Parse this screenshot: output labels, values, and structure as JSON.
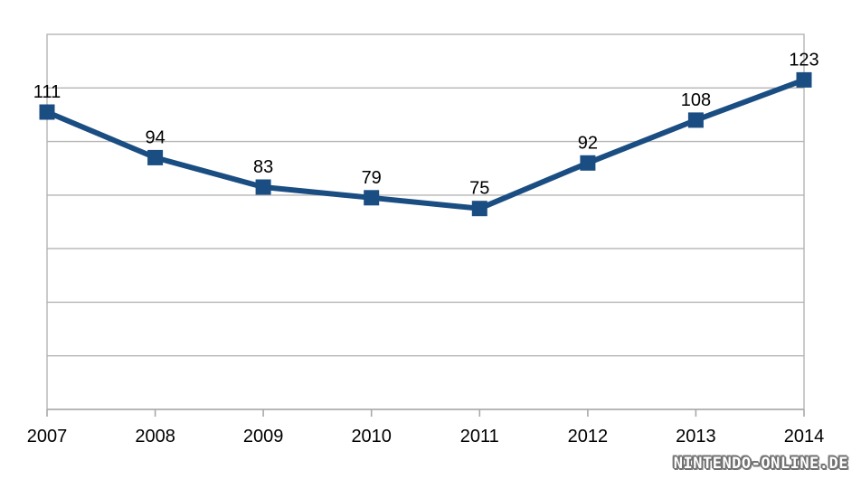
{
  "chart_data": {
    "type": "line",
    "title": "",
    "xlabel": "",
    "ylabel": "",
    "categories": [
      "2007",
      "2008",
      "2009",
      "2010",
      "2011",
      "2012",
      "2013",
      "2014"
    ],
    "series": [
      {
        "name": "values",
        "values": [
          111,
          94,
          83,
          79,
          75,
          92,
          108,
          123
        ]
      }
    ],
    "data_labels": [
      "111",
      "94",
      "83",
      "79",
      "75",
      "92",
      "108",
      "123"
    ],
    "ylim": [
      0,
      140
    ],
    "grid_step": 20,
    "grid": "horizontal-only",
    "legend_position": "none",
    "y_tick_labels_visible": false,
    "marker": "square",
    "colors": {
      "line": "#1A4D82",
      "marker": "#1A4D82",
      "gridline": "#b5b5b5",
      "axis": "#a9a9a9",
      "data_label_text": "#000000",
      "axis_label_text": "#000000",
      "background": "#ffffff"
    }
  },
  "watermark": {
    "text": "NINTENDO-ONLINE.DE"
  }
}
